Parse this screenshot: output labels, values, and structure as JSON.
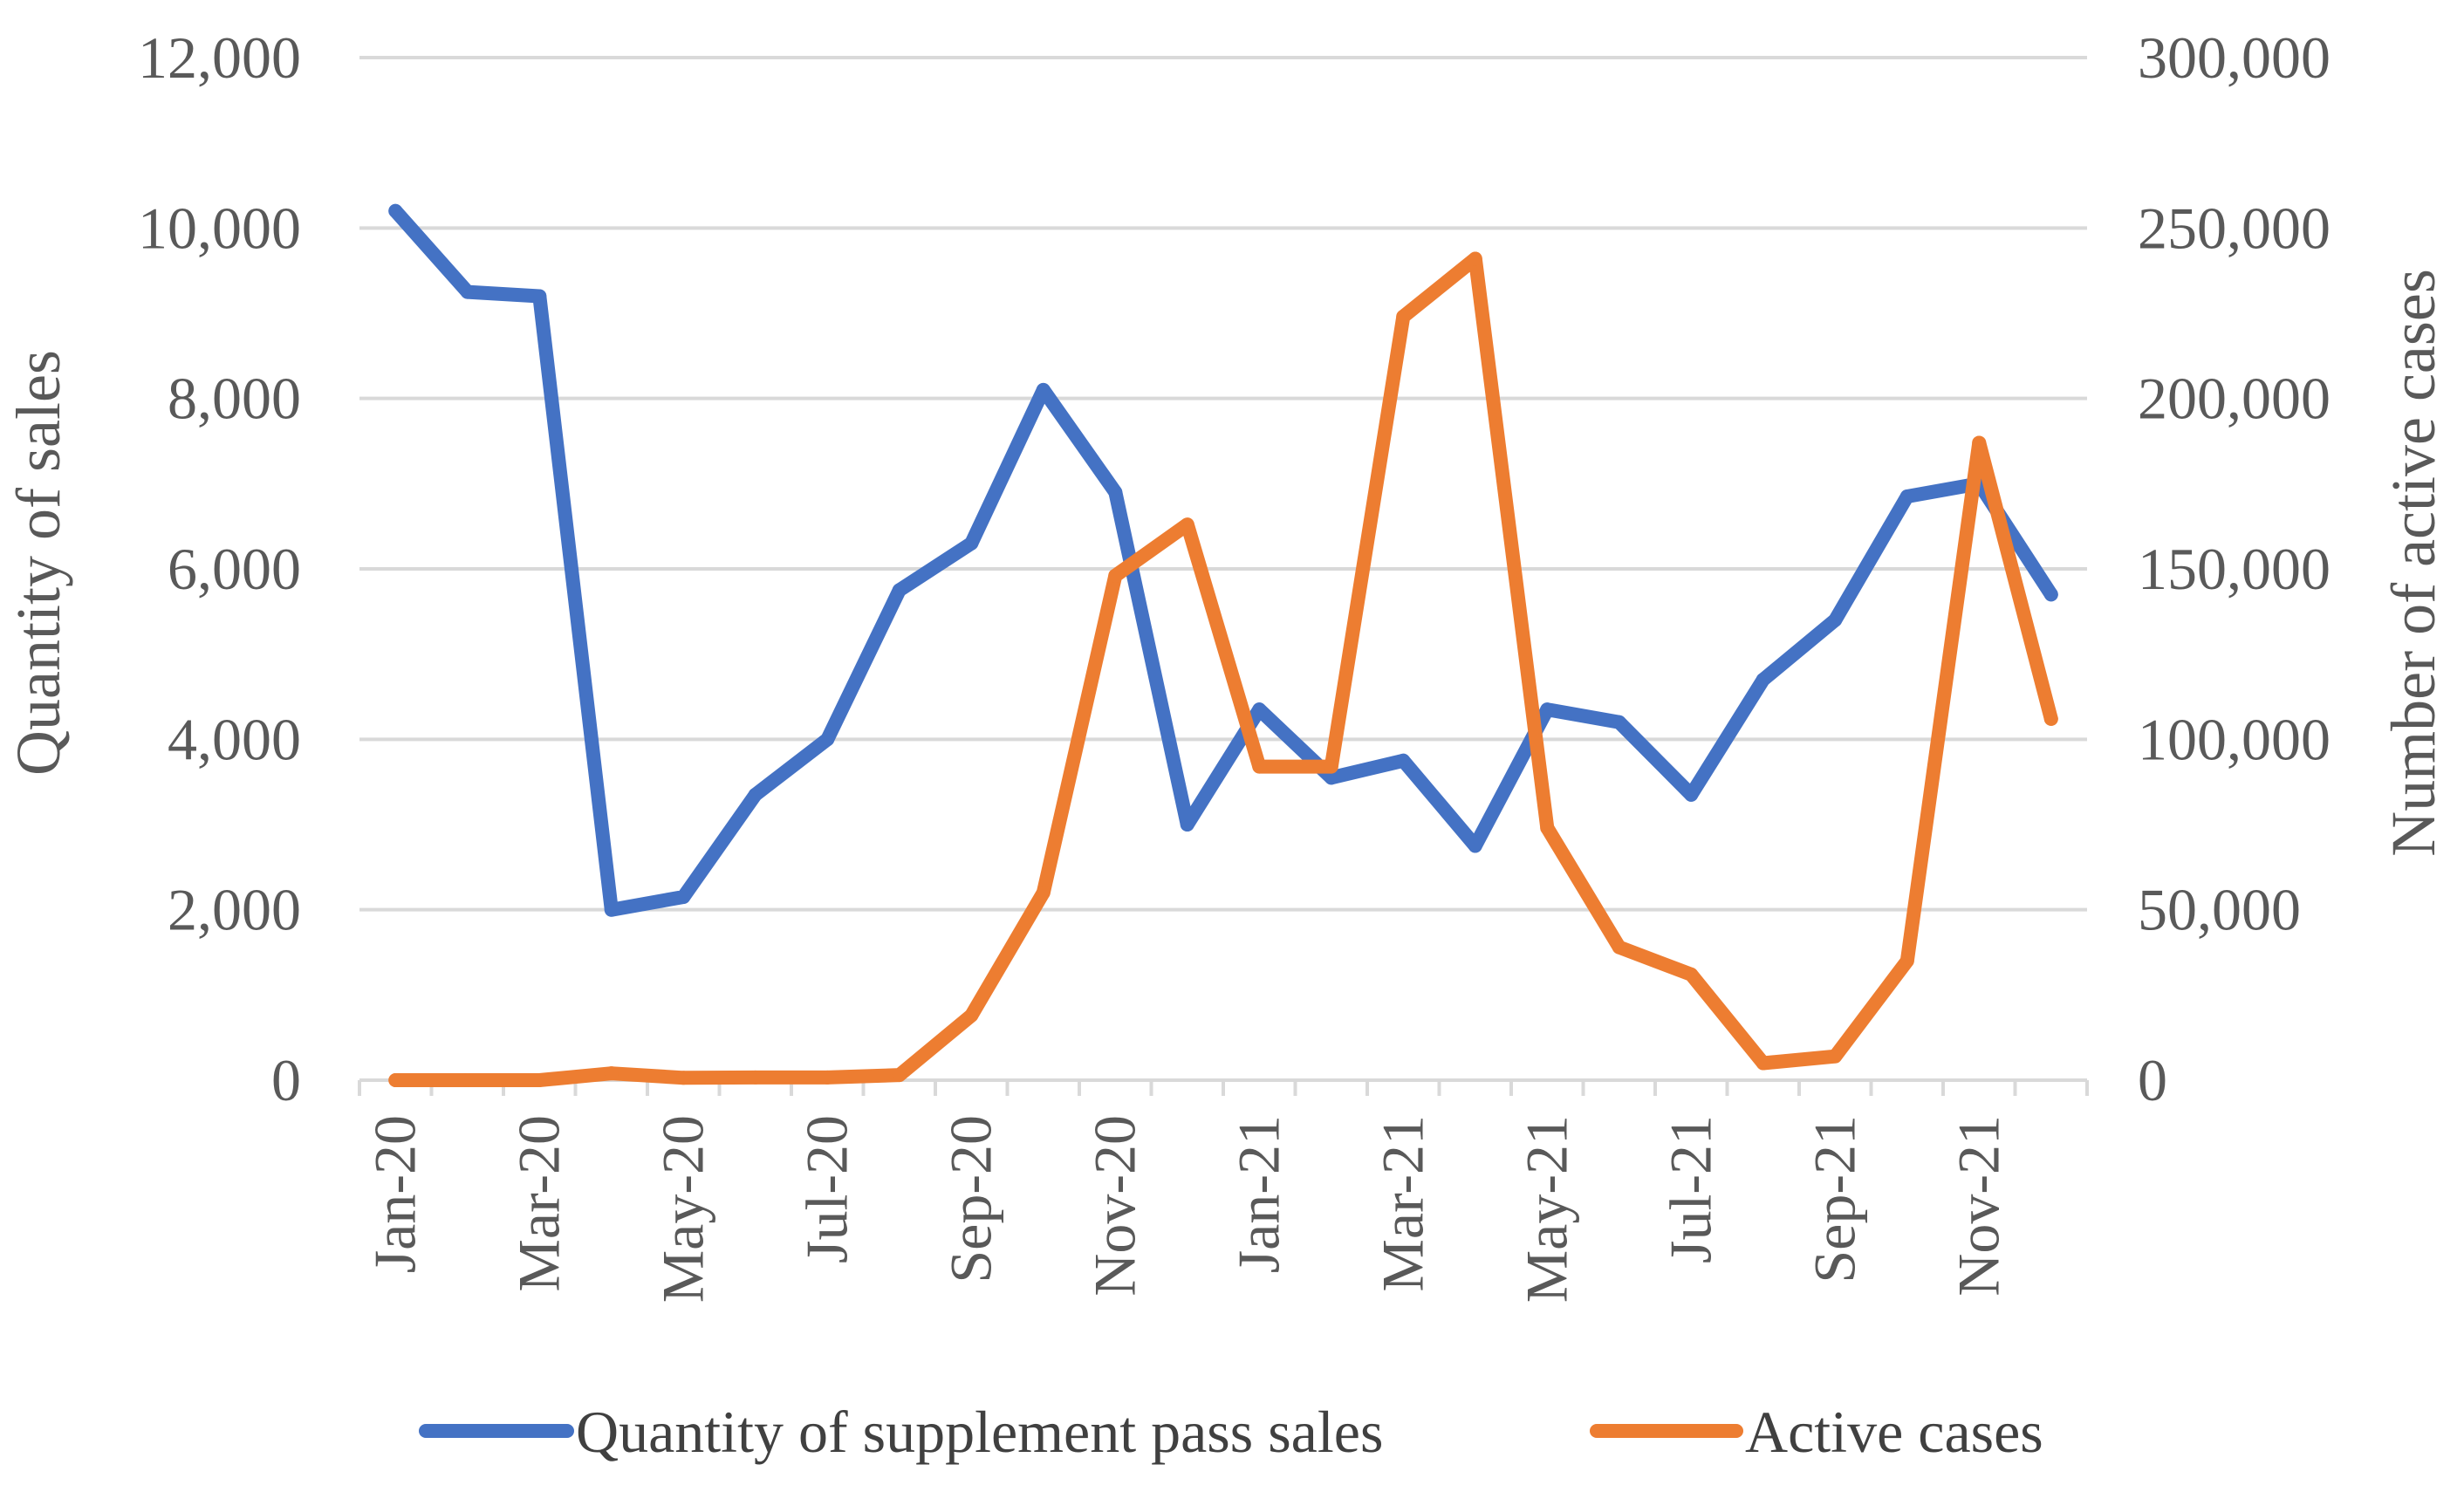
{
  "chart_data": {
    "type": "line",
    "title": "",
    "xlabel": "",
    "ylabel_left": "Quantity of sales",
    "ylabel_right": "Number of active cases",
    "ylim_left": [
      0,
      12000
    ],
    "ylim_right": [
      0,
      300000
    ],
    "yticks_left": [
      "0",
      "2,000",
      "4,000",
      "6,000",
      "8,000",
      "10,000",
      "12,000"
    ],
    "yticks_right": [
      "0",
      "50,000",
      "100,000",
      "150,000",
      "200,000",
      "250,000",
      "300,000"
    ],
    "grid": true,
    "legend_position": "bottom",
    "categories": [
      "Jan-20",
      "Feb-20",
      "Mar-20",
      "Apr-20",
      "May-20",
      "Jun-20",
      "Jul-20",
      "Aug-20",
      "Sep-20",
      "Oct-20",
      "Nov-20",
      "Dec-20",
      "Jan-21",
      "Feb-21",
      "Mar-21",
      "Apr-21",
      "May-21",
      "Jun-21",
      "Jul-21",
      "Aug-21",
      "Sep-21",
      "Oct-21",
      "Nov-21",
      "Dec-21"
    ],
    "xtick_labels": [
      "Jan-20",
      "Mar-20",
      "May-20",
      "Jul-20",
      "Sep-20",
      "Nov-20",
      "Jan-21",
      "Mar-21",
      "May-21",
      "Jul-21",
      "Sep-21",
      "Nov-21"
    ],
    "series": [
      {
        "name": "Quantity of supplement pass sales",
        "axis": "left",
        "color": "#4472C4",
        "values": [
          10200,
          9250,
          9200,
          2000,
          2150,
          3350,
          4000,
          5750,
          6300,
          8100,
          6900,
          3000,
          4350,
          3550,
          3750,
          2750,
          4350,
          4200,
          3350,
          4700,
          5400,
          6850,
          7000,
          5700
        ]
      },
      {
        "name": "Active cases",
        "axis": "right",
        "color": "#ED7D31",
        "values": [
          0,
          0,
          0,
          2000,
          700,
          800,
          800,
          1500,
          19000,
          55000,
          148000,
          163000,
          92000,
          92000,
          224000,
          241000,
          74000,
          39000,
          31000,
          5000,
          7000,
          35000,
          187000,
          106000
        ]
      }
    ]
  }
}
